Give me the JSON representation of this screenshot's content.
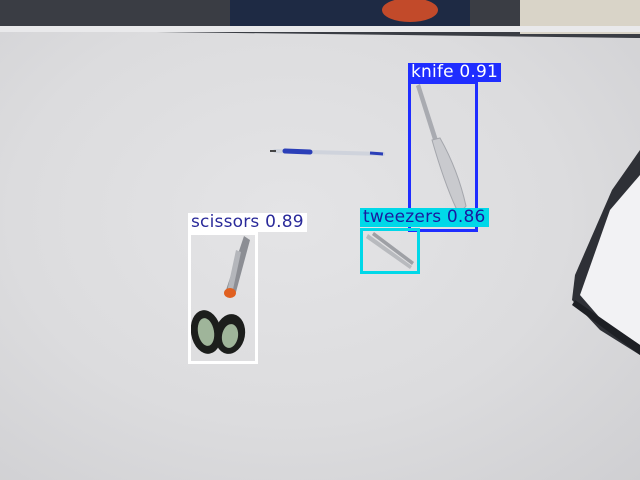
{
  "detections": [
    {
      "class": "knife",
      "confidence": "0.91",
      "label": "knife 0.91",
      "color": "#1f2dff"
    },
    {
      "class": "tweezers",
      "confidence": "0.86",
      "label": "tweezers 0.86",
      "color": "#00d8e8"
    },
    {
      "class": "scissors",
      "confidence": "0.89",
      "label": "scissors 0.89",
      "color": "#ffffff"
    }
  ],
  "objects": [
    "knife",
    "tweezers",
    "scissors",
    "pen",
    "laptop",
    "table"
  ]
}
